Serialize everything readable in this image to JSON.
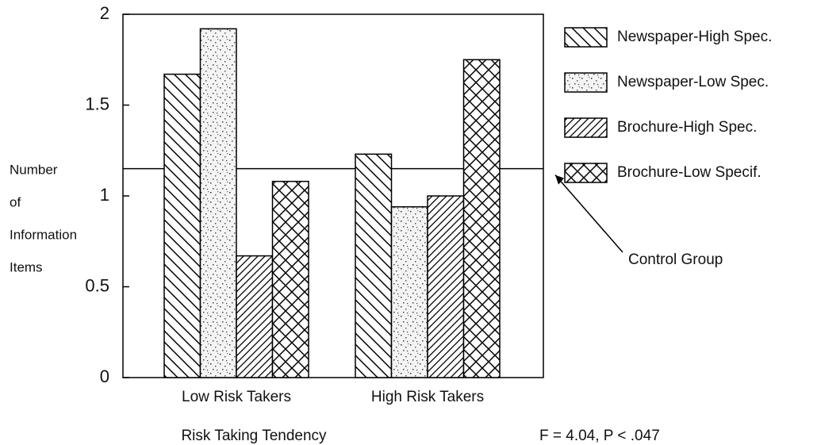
{
  "chart_data": {
    "type": "bar",
    "categories": [
      "Low Risk Takers",
      "High Risk Takers"
    ],
    "series": [
      {
        "name": "Newspaper-High Spec.",
        "color": "#000000",
        "pattern": "backslash",
        "values": [
          1.67,
          1.23
        ]
      },
      {
        "name": "Newspaper-Low Spec.",
        "color": "#000000",
        "pattern": "stipple",
        "values": [
          1.92,
          0.94
        ]
      },
      {
        "name": "Brochure-High Spec.",
        "color": "#000000",
        "pattern": "slash",
        "values": [
          0.67,
          1.0
        ]
      },
      {
        "name": "Brochure-Low Specif.",
        "color": "#000000",
        "pattern": "crosshatch",
        "values": [
          1.08,
          1.75
        ]
      }
    ],
    "ylim": [
      0,
      2
    ],
    "yticks": [
      0,
      0.5,
      1,
      1.5,
      2
    ],
    "ylabel": [
      "Number",
      "of",
      "Information",
      "Items"
    ],
    "xlabel": "Risk Taking Tendency",
    "reference_line": {
      "label": "Control Group",
      "value": 1.15
    },
    "annotation": "F = 4.04, P < .047",
    "legend": "right"
  }
}
